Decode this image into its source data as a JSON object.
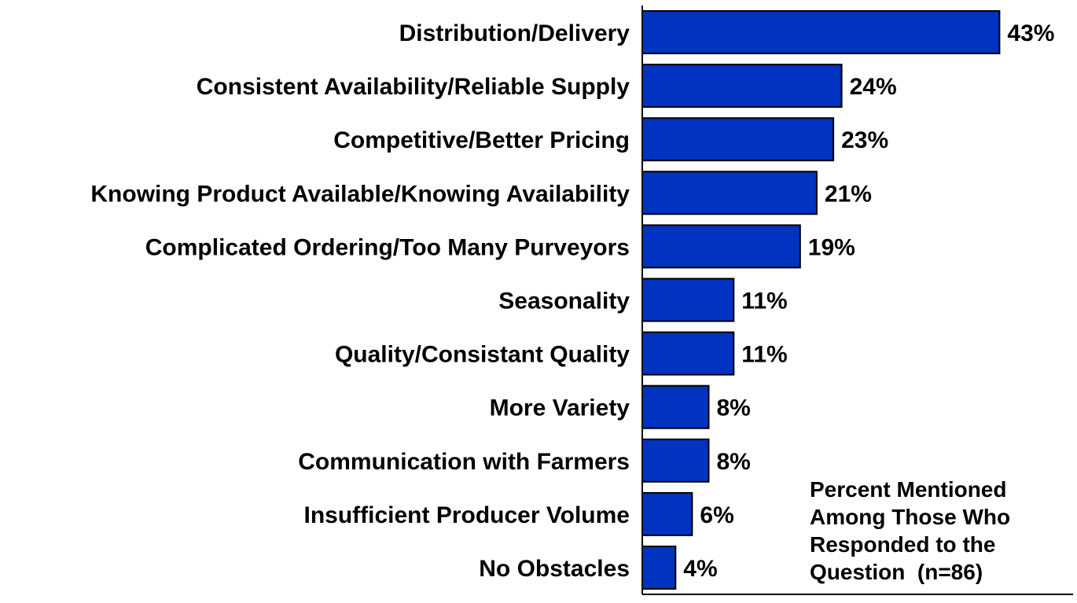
{
  "chart_data": {
    "type": "bar",
    "orientation": "horizontal",
    "categories": [
      "Distribution/Delivery",
      "Consistent Availability/Reliable Supply",
      "Competitive/Better Pricing",
      "Knowing Product Available/Knowing Availability",
      "Complicated Ordering/Too Many Purveyors",
      "Seasonality",
      "Quality/Consistant Quality",
      "More Variety",
      "Communication with Farmers",
      "Insufficient Producer Volume",
      "No Obstacles"
    ],
    "values": [
      43,
      24,
      23,
      21,
      19,
      11,
      11,
      8,
      8,
      6,
      4
    ],
    "value_labels": [
      "43%",
      "24%",
      "23%",
      "21%",
      "19%",
      "11%",
      "11%",
      "8%",
      "8%",
      "6%",
      "4%"
    ],
    "title": "",
    "xlabel": "",
    "ylabel": "",
    "xlim": [
      0,
      44
    ],
    "grid": false,
    "legend": "none",
    "bar_color": "#0033c0",
    "bar_edge_color": "#000000",
    "note_lines": [
      "Percent Mentioned",
      "Among Those Who",
      "Responded to the",
      "Question  (n=86)"
    ]
  }
}
